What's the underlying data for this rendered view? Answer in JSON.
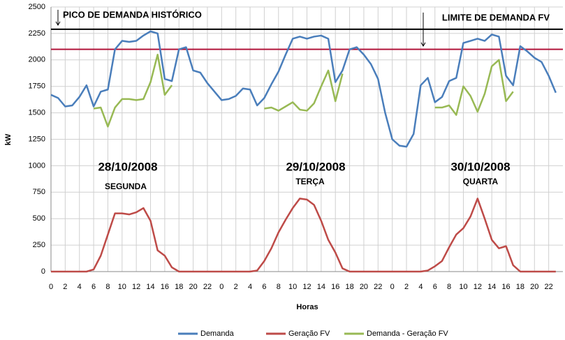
{
  "chart_data": {
    "type": "line",
    "y_label": "kW",
    "x_label": "Horas",
    "x": [
      0,
      1,
      2,
      3,
      4,
      5,
      6,
      7,
      8,
      9,
      10,
      11,
      12,
      13,
      14,
      15,
      16,
      17,
      18,
      19,
      20,
      21,
      22,
      23,
      24,
      25,
      26,
      27,
      28,
      29,
      30,
      31,
      32,
      33,
      34,
      35,
      36,
      37,
      38,
      39,
      40,
      41,
      42,
      43,
      44,
      45,
      46,
      47,
      48,
      49,
      50,
      51,
      52,
      53,
      54,
      55,
      56,
      57,
      58,
      59,
      60,
      61,
      62,
      63,
      64,
      65,
      66,
      67,
      68,
      69,
      70,
      71
    ],
    "series": [
      {
        "name": "Demanda",
        "color": "#4a7ebb",
        "values": [
          1670,
          1640,
          1560,
          1570,
          1650,
          1760,
          1560,
          1700,
          1720,
          2100,
          2180,
          2170,
          2180,
          2230,
          2270,
          2250,
          1820,
          1800,
          2100,
          2120,
          1900,
          1880,
          1780,
          1700,
          1620,
          1630,
          1660,
          1730,
          1720,
          1570,
          1640,
          1770,
          1890,
          2050,
          2200,
          2220,
          2200,
          2220,
          2230,
          2200,
          1790,
          1900,
          2100,
          2120,
          2050,
          1960,
          1820,
          1500,
          1250,
          1190,
          1180,
          1300,
          1760,
          1830,
          1600,
          1650,
          1800,
          1830,
          2160,
          2180,
          2200,
          2180,
          2240,
          2220,
          1850,
          1760,
          2130,
          2080,
          2020,
          1980,
          1850,
          1690
        ]
      },
      {
        "name": "Geração FV",
        "color": "#be4b48",
        "values": [
          0,
          0,
          0,
          0,
          0,
          0,
          20,
          150,
          350,
          550,
          550,
          540,
          560,
          600,
          480,
          200,
          150,
          40,
          0,
          0,
          0,
          0,
          0,
          0,
          0,
          0,
          0,
          0,
          0,
          10,
          100,
          220,
          370,
          490,
          600,
          690,
          680,
          630,
          480,
          300,
          180,
          30,
          0,
          0,
          0,
          0,
          0,
          0,
          0,
          0,
          0,
          0,
          0,
          10,
          50,
          100,
          230,
          350,
          410,
          520,
          690,
          500,
          300,
          220,
          240,
          60,
          0,
          0,
          0,
          0,
          0,
          0
        ]
      },
      {
        "name": "Demanda - Geração FV",
        "color": "#98b954",
        "values": [
          null,
          null,
          null,
          null,
          null,
          null,
          1540,
          1550,
          1370,
          1550,
          1630,
          1630,
          1620,
          1630,
          1790,
          2050,
          1670,
          1760,
          null,
          null,
          null,
          null,
          null,
          null,
          null,
          null,
          null,
          null,
          null,
          null,
          1540,
          1550,
          1520,
          1560,
          1600,
          1530,
          1520,
          1590,
          1750,
          1900,
          1610,
          1870,
          null,
          null,
          null,
          null,
          null,
          null,
          null,
          null,
          null,
          null,
          null,
          null,
          1550,
          1550,
          1570,
          1480,
          1750,
          1660,
          1510,
          1680,
          1940,
          2000,
          1610,
          1700,
          null,
          null,
          null,
          null,
          null,
          null
        ]
      }
    ],
    "xlim": [
      0,
      72
    ],
    "ylim": [
      0,
      2500
    ],
    "yticks": [
      0,
      250,
      500,
      750,
      1000,
      1250,
      1500,
      1750,
      2000,
      2250,
      2500
    ],
    "xticks": [
      0,
      2,
      4,
      6,
      8,
      10,
      12,
      14,
      16,
      18,
      20,
      22,
      {
        "value": 24,
        "label": "0"
      },
      {
        "value": 26,
        "label": "2"
      },
      {
        "value": 28,
        "label": "4"
      },
      {
        "value": 30,
        "label": "6"
      },
      {
        "value": 32,
        "label": "8"
      },
      {
        "value": 34,
        "label": "10"
      },
      {
        "value": 36,
        "label": "12"
      },
      {
        "value": 38,
        "label": "14"
      },
      {
        "value": 40,
        "label": "16"
      },
      {
        "value": 42,
        "label": "18"
      },
      {
        "value": 44,
        "label": "20"
      },
      {
        "value": 46,
        "label": "22"
      },
      {
        "value": 48,
        "label": "0"
      },
      {
        "value": 50,
        "label": "2"
      },
      {
        "value": 52,
        "label": "4"
      },
      {
        "value": 54,
        "label": "6"
      },
      {
        "value": 56,
        "label": "8"
      },
      {
        "value": 58,
        "label": "10"
      },
      {
        "value": 60,
        "label": "12"
      },
      {
        "value": 62,
        "label": "14"
      },
      {
        "value": 64,
        "label": "16"
      },
      {
        "value": 66,
        "label": "18"
      },
      {
        "value": 68,
        "label": "20"
      },
      {
        "value": 70,
        "label": "22"
      }
    ],
    "grid": true,
    "legend": "bottom",
    "reference_lines": [
      {
        "value": 2290,
        "label": "PICO DE DEMANDA HISTÓRICO",
        "color": "#000000"
      },
      {
        "value": 2100,
        "label": "LIMITE DE DEMANDA FV",
        "color": "#b0153a"
      }
    ],
    "annotations": [
      {
        "date": "28/10/2008",
        "day": "SEGUNDA"
      },
      {
        "date": "29/10/2008",
        "day": "TERÇA"
      },
      {
        "date": "30/10/2008",
        "day": "QUARTA"
      }
    ]
  }
}
